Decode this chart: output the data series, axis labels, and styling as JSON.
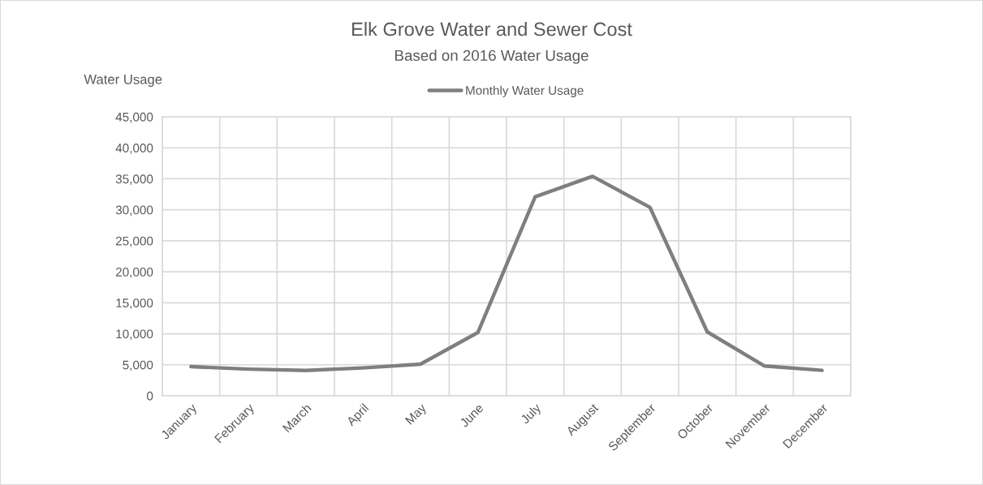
{
  "chart_data": {
    "type": "line",
    "title": "Elk Grove Water and Sewer Cost",
    "subtitle": "Based on 2016 Water Usage",
    "ylabel": "Water Usage",
    "categories": [
      "January",
      "February",
      "March",
      "April",
      "May",
      "June",
      "July",
      "August",
      "September",
      "October",
      "November",
      "December"
    ],
    "series": [
      {
        "name": "Monthly Water Usage",
        "color": "#7f7f7f",
        "values": [
          4700,
          4300,
          4100,
          4500,
          5100,
          10200,
          32100,
          35400,
          30400,
          10300,
          4800,
          4100
        ]
      }
    ],
    "ylim": [
      0,
      45000
    ],
    "yticks": [
      {
        "value": 0,
        "label": "0"
      },
      {
        "value": 5000,
        "label": "5,000"
      },
      {
        "value": 10000,
        "label": "10,000"
      },
      {
        "value": 15000,
        "label": "15,000"
      },
      {
        "value": 20000,
        "label": "20,000"
      },
      {
        "value": 25000,
        "label": "25,000"
      },
      {
        "value": 30000,
        "label": "30,000"
      },
      {
        "value": 35000,
        "label": "35,000"
      },
      {
        "value": 40000,
        "label": "40,000"
      },
      {
        "value": 45000,
        "label": "45,000"
      }
    ],
    "grid": true,
    "legend": "top",
    "marker": "none",
    "line_style": "solid"
  }
}
